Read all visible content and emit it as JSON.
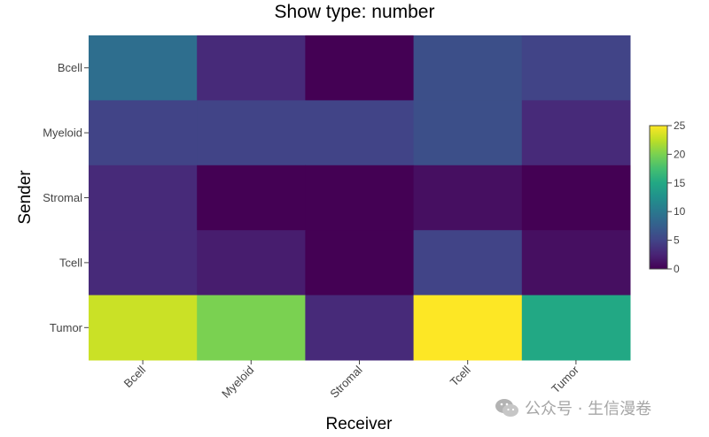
{
  "chart_data": {
    "type": "heatmap",
    "title": "Show type: number",
    "xlabel": "Receiver",
    "ylabel": "Sender",
    "x_categories": [
      "Bcell",
      "Myeloid",
      "Stromal",
      "Tcell",
      "Tumor"
    ],
    "y_categories": [
      "Bcell",
      "Myeloid",
      "Stromal",
      "Tcell",
      "Tumor"
    ],
    "values": [
      [
        9,
        3,
        0,
        6,
        5
      ],
      [
        5,
        5,
        5,
        6,
        3
      ],
      [
        3,
        0,
        0,
        1,
        0
      ],
      [
        3,
        2,
        0,
        5,
        1
      ],
      [
        23,
        20,
        3,
        25,
        15
      ]
    ],
    "colorscale": "viridis",
    "zmin": 0,
    "zmax": 25,
    "colorbar_ticks": [
      0,
      5,
      10,
      15,
      20,
      25
    ],
    "colorbar_placement": "right"
  },
  "watermark": {
    "text": "公众号 · 生信漫卷",
    "icon": "wechat-icon",
    "color": "#a6a6a6"
  }
}
